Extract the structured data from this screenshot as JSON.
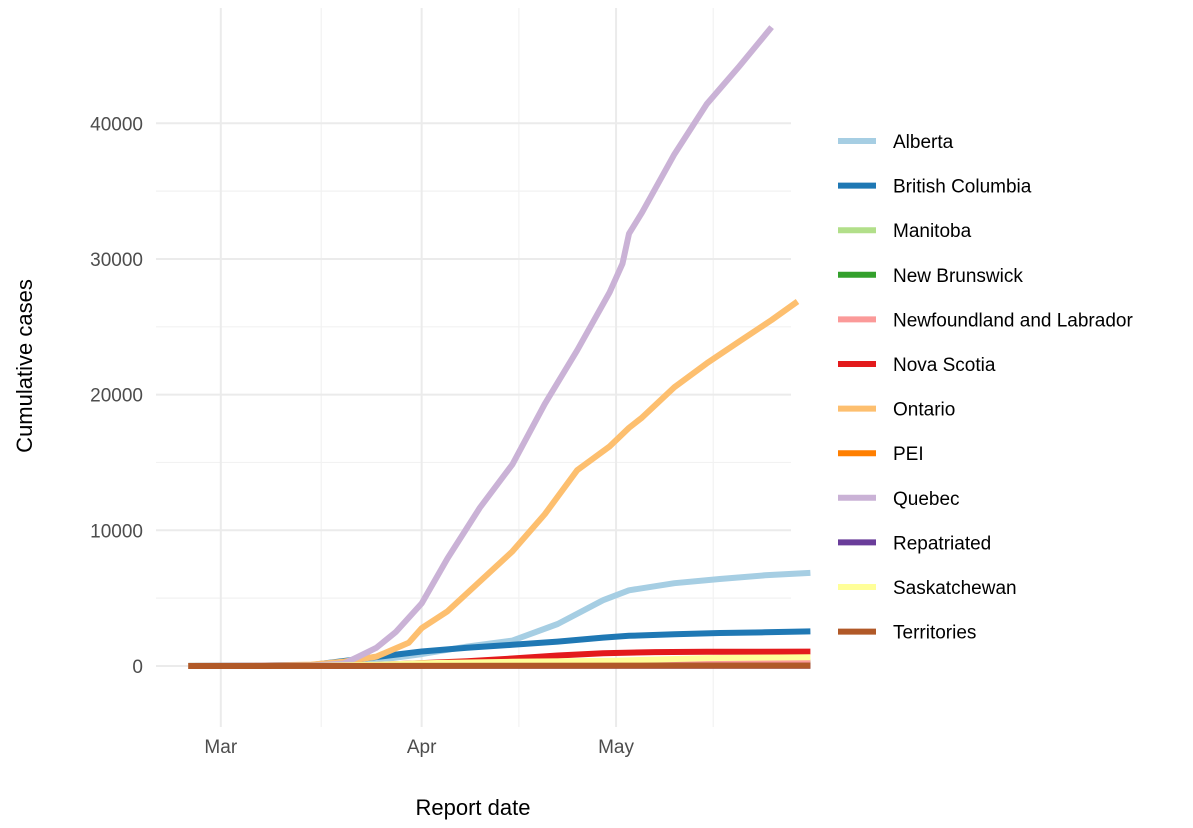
{
  "chart_data": {
    "type": "line",
    "title": "",
    "xlabel": "Report date",
    "ylabel": "Cumulative cases",
    "x_axis": {
      "type": "date",
      "range": [
        "2020-02-20",
        "2020-05-28"
      ],
      "ticks": [
        {
          "date": "2020-03-01",
          "label": "Mar"
        },
        {
          "date": "2020-04-01",
          "label": "Apr"
        },
        {
          "date": "2020-05-01",
          "label": "May"
        }
      ]
    },
    "y_axis": {
      "range": [
        -4500,
        48500
      ],
      "ticks": [
        {
          "value": 0,
          "label": "0"
        },
        {
          "value": 10000,
          "label": "10000"
        },
        {
          "value": 20000,
          "label": "20000"
        },
        {
          "value": 30000,
          "label": "30000"
        },
        {
          "value": 40000,
          "label": "40000"
        }
      ]
    },
    "grid": true,
    "legend": "right",
    "series": [
      {
        "name": "Alberta",
        "color": "#A6CEE3",
        "points": [
          [
            "2020-02-25",
            0
          ],
          [
            "2020-03-05",
            1
          ],
          [
            "2020-03-15",
            39
          ],
          [
            "2020-03-25",
            419
          ],
          [
            "2020-04-01",
            871
          ],
          [
            "2020-04-08",
            1423
          ],
          [
            "2020-04-15",
            1870
          ],
          [
            "2020-04-22",
            3095
          ],
          [
            "2020-04-29",
            4850
          ],
          [
            "2020-05-03",
            5573
          ],
          [
            "2020-05-10",
            6098
          ],
          [
            "2020-05-17",
            6407
          ],
          [
            "2020-05-24",
            6683
          ],
          [
            "2020-05-31",
            6860
          ]
        ]
      },
      {
        "name": "British Columbia",
        "color": "#1F78B4",
        "points": [
          [
            "2020-02-25",
            7
          ],
          [
            "2020-03-05",
            21
          ],
          [
            "2020-03-15",
            73
          ],
          [
            "2020-03-25",
            659
          ],
          [
            "2020-04-01",
            1066
          ],
          [
            "2020-04-08",
            1336
          ],
          [
            "2020-04-15",
            1561
          ],
          [
            "2020-04-22",
            1795
          ],
          [
            "2020-04-29",
            2087
          ],
          [
            "2020-05-03",
            2224
          ],
          [
            "2020-05-10",
            2330
          ],
          [
            "2020-05-17",
            2428
          ],
          [
            "2020-05-24",
            2479
          ],
          [
            "2020-05-31",
            2550
          ]
        ]
      },
      {
        "name": "Manitoba",
        "color": "#B2DF8A",
        "points": [
          [
            "2020-02-25",
            0
          ],
          [
            "2020-03-15",
            4
          ],
          [
            "2020-03-25",
            35
          ],
          [
            "2020-04-01",
            127
          ],
          [
            "2020-04-15",
            246
          ],
          [
            "2020-05-01",
            273
          ],
          [
            "2020-05-31",
            294
          ]
        ]
      },
      {
        "name": "New Brunswick",
        "color": "#33A02C",
        "points": [
          [
            "2020-02-25",
            0
          ],
          [
            "2020-03-15",
            2
          ],
          [
            "2020-03-25",
            45
          ],
          [
            "2020-04-01",
            81
          ],
          [
            "2020-04-15",
            116
          ],
          [
            "2020-05-01",
            118
          ],
          [
            "2020-05-31",
            121
          ]
        ]
      },
      {
        "name": "Newfoundland and Labrador",
        "color": "#FB9A99",
        "points": [
          [
            "2020-02-25",
            0
          ],
          [
            "2020-03-15",
            1
          ],
          [
            "2020-03-25",
            67
          ],
          [
            "2020-04-01",
            175
          ],
          [
            "2020-04-15",
            244
          ],
          [
            "2020-05-01",
            258
          ],
          [
            "2020-05-31",
            261
          ]
        ]
      },
      {
        "name": "Nova Scotia",
        "color": "#E31A1C",
        "points": [
          [
            "2020-02-25",
            0
          ],
          [
            "2020-03-15",
            5
          ],
          [
            "2020-03-25",
            68
          ],
          [
            "2020-04-01",
            207
          ],
          [
            "2020-04-08",
            342
          ],
          [
            "2020-04-15",
            549
          ],
          [
            "2020-04-22",
            772
          ],
          [
            "2020-04-29",
            935
          ],
          [
            "2020-05-07",
            1018
          ],
          [
            "2020-05-15",
            1046
          ],
          [
            "2020-05-31",
            1056
          ]
        ]
      },
      {
        "name": "Ontario",
        "color": "#FDBF6F",
        "points": [
          [
            "2020-02-25",
            4
          ],
          [
            "2020-03-05",
            22
          ],
          [
            "2020-03-15",
            103
          ],
          [
            "2020-03-20",
            318
          ],
          [
            "2020-03-25",
            688
          ],
          [
            "2020-03-30",
            1706
          ],
          [
            "2020-04-01",
            2793
          ],
          [
            "2020-04-05",
            4038
          ],
          [
            "2020-04-10",
            6237
          ],
          [
            "2020-04-15",
            8447
          ],
          [
            "2020-04-20",
            11184
          ],
          [
            "2020-04-25",
            14432
          ],
          [
            "2020-04-30",
            16187
          ],
          [
            "2020-05-03",
            17553
          ],
          [
            "2020-05-05",
            18310
          ],
          [
            "2020-05-10",
            20546
          ],
          [
            "2020-05-15",
            22313
          ],
          [
            "2020-05-20",
            23914
          ],
          [
            "2020-05-25",
            25500
          ],
          [
            "2020-05-29",
            26866
          ]
        ]
      },
      {
        "name": "PEI",
        "color": "#FF7F00",
        "points": [
          [
            "2020-02-25",
            0
          ],
          [
            "2020-03-15",
            1
          ],
          [
            "2020-03-25",
            5
          ],
          [
            "2020-04-01",
            22
          ],
          [
            "2020-04-15",
            26
          ],
          [
            "2020-05-01",
            27
          ],
          [
            "2020-05-31",
            27
          ]
        ]
      },
      {
        "name": "Quebec",
        "color": "#CAB2D6",
        "points": [
          [
            "2020-02-25",
            0
          ],
          [
            "2020-03-05",
            1
          ],
          [
            "2020-03-15",
            24
          ],
          [
            "2020-03-20",
            181
          ],
          [
            "2020-03-22",
            628
          ],
          [
            "2020-03-25",
            1339
          ],
          [
            "2020-03-28",
            2498
          ],
          [
            "2020-04-01",
            4611
          ],
          [
            "2020-04-05",
            7944
          ],
          [
            "2020-04-10",
            11677
          ],
          [
            "2020-04-15",
            14860
          ],
          [
            "2020-04-20",
            19319
          ],
          [
            "2020-04-25",
            23267
          ],
          [
            "2020-04-30",
            27538
          ],
          [
            "2020-05-02",
            29656
          ],
          [
            "2020-05-03",
            31865
          ],
          [
            "2020-05-05",
            33417
          ],
          [
            "2020-05-10",
            37721
          ],
          [
            "2020-05-15",
            41420
          ],
          [
            "2020-05-20",
            44197
          ],
          [
            "2020-05-25",
            47094
          ]
        ]
      },
      {
        "name": "Repatriated",
        "color": "#6A3D9A",
        "points": [
          [
            "2020-02-25",
            0
          ],
          [
            "2020-03-10",
            11
          ],
          [
            "2020-03-20",
            13
          ],
          [
            "2020-05-31",
            13
          ]
        ]
      },
      {
        "name": "Saskatchewan",
        "color": "#FFFF99",
        "points": [
          [
            "2020-02-25",
            0
          ],
          [
            "2020-03-15",
            2
          ],
          [
            "2020-03-25",
            86
          ],
          [
            "2020-04-01",
            206
          ],
          [
            "2020-04-15",
            304
          ],
          [
            "2020-05-01",
            389
          ],
          [
            "2020-05-15",
            582
          ],
          [
            "2020-05-31",
            647
          ]
        ]
      },
      {
        "name": "Territories",
        "color": "#B15928",
        "points": [
          [
            "2020-02-25",
            0
          ],
          [
            "2020-03-25",
            4
          ],
          [
            "2020-04-15",
            18
          ],
          [
            "2020-05-31",
            24
          ]
        ]
      }
    ]
  }
}
